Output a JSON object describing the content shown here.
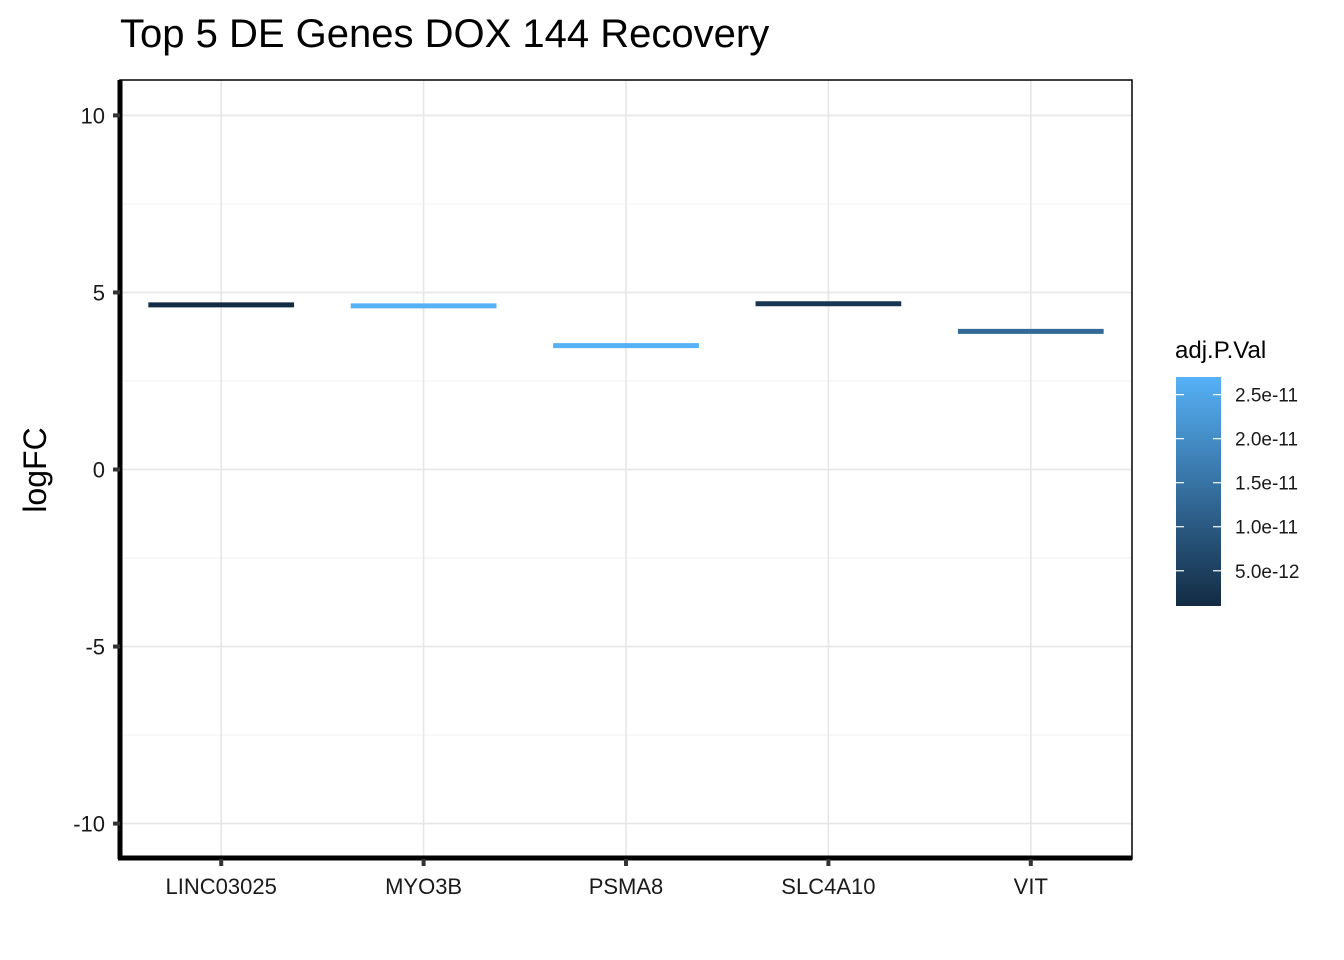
{
  "chart_data": {
    "type": "crossbar",
    "title": "Top 5 DE Genes DOX 144 Recovery",
    "xlabel": "",
    "ylabel": "logFC",
    "ylim": [
      -11,
      11
    ],
    "yticks": [
      10,
      5,
      0,
      -5,
      -10
    ],
    "ytick_labels": [
      "10",
      "5",
      "0",
      "-5",
      "-10"
    ],
    "categories": [
      "LINC03025",
      "MYO3B",
      "PSMA8",
      "SLC4A10",
      "VIT"
    ],
    "values": [
      4.65,
      4.62,
      3.5,
      4.68,
      3.9
    ],
    "adj_p_values": [
      1e-12,
      2.7e-11,
      2.7e-11,
      3e-12,
      1.3e-11
    ],
    "grid": true,
    "legend": {
      "title": "adj.P.Val",
      "position": "right",
      "low_color": "#132B43",
      "high_color": "#56B1F7",
      "range": [
        1e-12,
        2.7e-11
      ],
      "breaks": [
        5e-12,
        1e-11,
        1.5e-11,
        2e-11,
        2.5e-11
      ],
      "break_labels": [
        "5.0e-12",
        "1.0e-11",
        "1.5e-11",
        "2.0e-11",
        "2.5e-11"
      ]
    }
  }
}
